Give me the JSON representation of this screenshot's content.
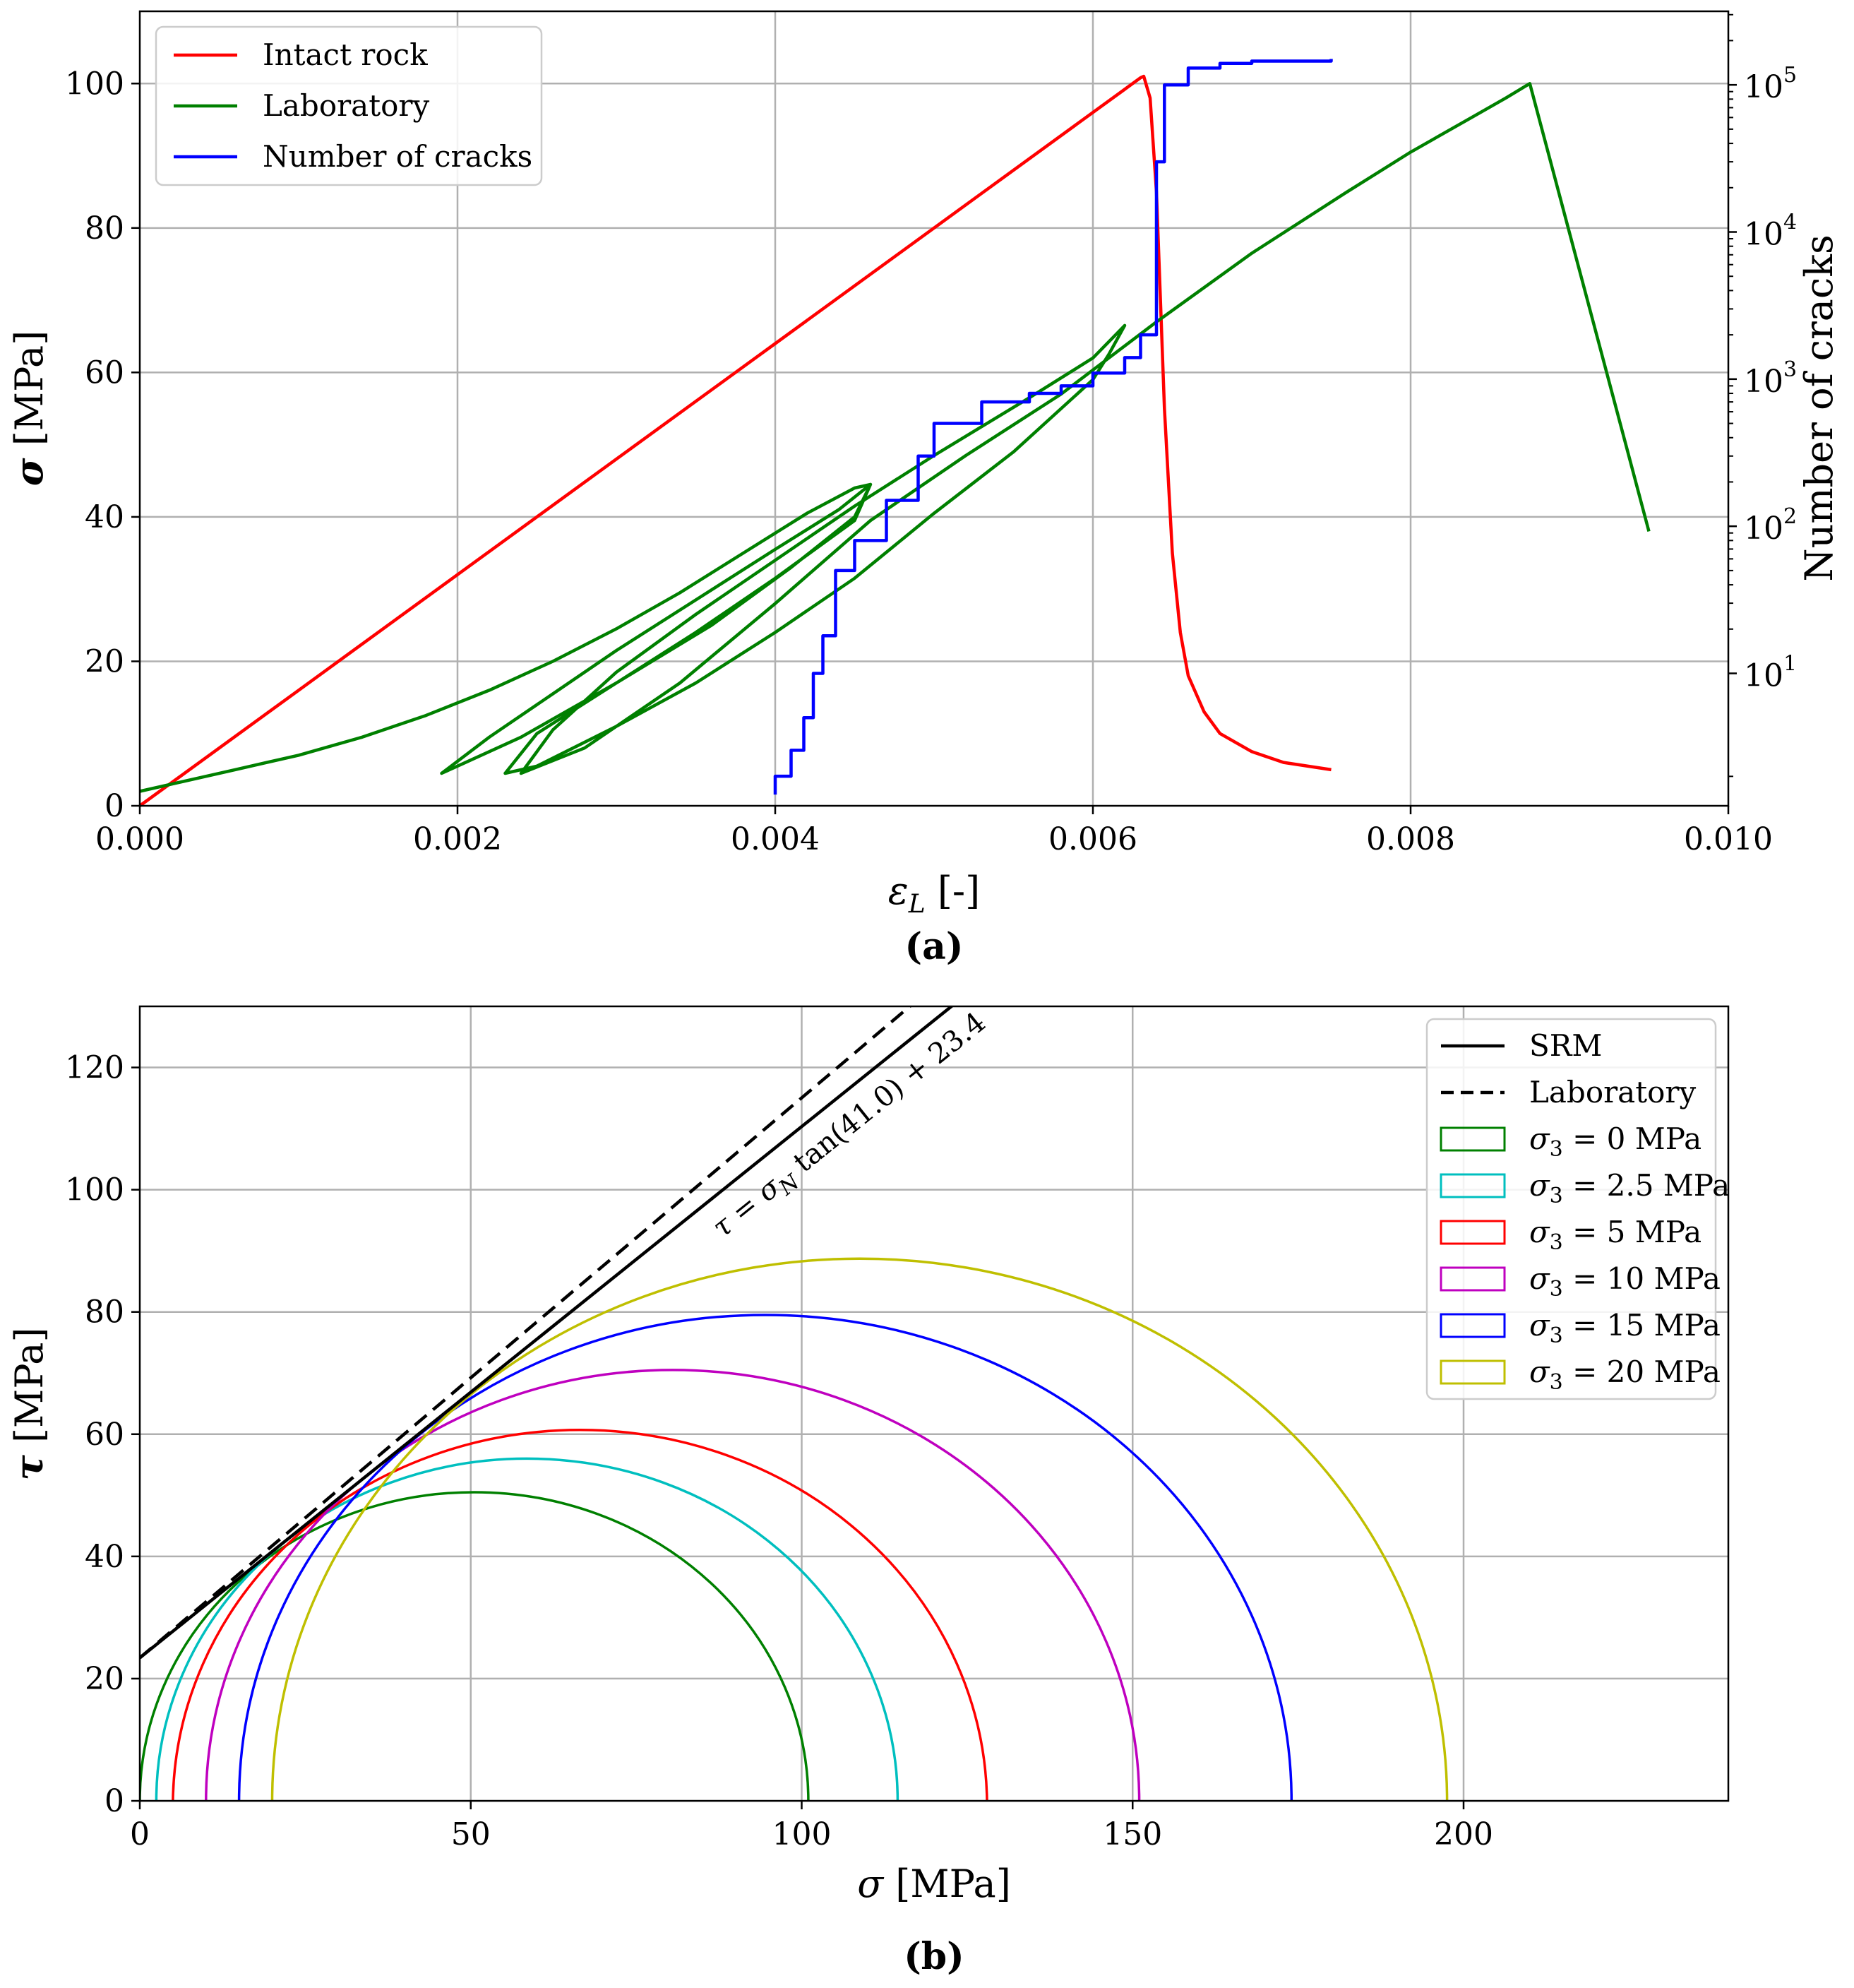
{
  "chart_data": [
    {
      "type": "line",
      "panel_label": "(a)",
      "xlabel_var": "ε",
      "xlabel_sub": "L",
      "xlabel_unit": " [-]",
      "ylabel_var": "σ",
      "ylabel_unit": " [MPa]",
      "y2label": "Number of cracks",
      "xlim": [
        0,
        0.01
      ],
      "ylim": [
        0,
        110
      ],
      "y2lim_log10": [
        0.1,
        5.5
      ],
      "x_ticks": [
        "0.000",
        "0.002",
        "0.004",
        "0.006",
        "0.008",
        "0.010"
      ],
      "x_tick_values": [
        0,
        0.002,
        0.004,
        0.006,
        0.008,
        0.01
      ],
      "y_ticks": [
        "0",
        "20",
        "40",
        "60",
        "80",
        "100"
      ],
      "y_tick_values": [
        0,
        20,
        40,
        60,
        80,
        100
      ],
      "y2_ticks": [
        {
          "base": "10",
          "exp": "1",
          "value": 10
        },
        {
          "base": "10",
          "exp": "2",
          "value": 100
        },
        {
          "base": "10",
          "exp": "3",
          "value": 1000
        },
        {
          "base": "10",
          "exp": "4",
          "value": 10000
        },
        {
          "base": "10",
          "exp": "5",
          "value": 100000
        }
      ],
      "grid": true,
      "legend_position": "upper-left",
      "series": [
        {
          "name": "Intact rock",
          "color": "#ff0000",
          "axis": "left",
          "x": [
            0,
            0.001,
            0.002,
            0.003,
            0.004,
            0.005,
            0.006,
            0.0062,
            0.0063,
            0.00632,
            0.00636,
            0.0064,
            0.00645,
            0.0065,
            0.00655,
            0.0066,
            0.0067,
            0.0068,
            0.007,
            0.0072,
            0.0075
          ],
          "values": [
            0,
            16,
            32,
            48,
            64,
            80,
            96,
            99.2,
            100.8,
            101,
            98,
            85,
            55,
            35,
            24,
            18,
            13,
            10,
            7.5,
            6,
            5
          ]
        },
        {
          "name": "Laboratory",
          "color": "#008000",
          "axis": "left",
          "x": [
            0,
            0.0002,
            0.0006,
            0.001,
            0.0014,
            0.0018,
            0.0022,
            0.0026,
            0.003,
            0.0034,
            0.0038,
            0.0042,
            0.0045,
            0.0046,
            0.0044,
            0.004,
            0.0035,
            0.003,
            0.0026,
            0.0022,
            0.0019,
            0.002,
            0.0024,
            0.003,
            0.0035,
            0.004,
            0.0045,
            0.0046,
            0.0045,
            0.0041,
            0.0036,
            0.003,
            0.0025,
            0.0023,
            0.0025,
            0.003,
            0.0035,
            0.004,
            0.0045,
            0.005,
            0.0055,
            0.006,
            0.0061,
            0.0062,
            0.006,
            0.0056,
            0.005,
            0.0045,
            0.004,
            0.0035,
            0.003,
            0.0026,
            0.0024,
            0.0028,
            0.0034,
            0.004,
            0.0046,
            0.0052,
            0.0058,
            0.0064,
            0.007,
            0.0076,
            0.008,
            0.0084,
            0.0086,
            0.00875,
            0.0095
          ],
          "values": [
            2,
            3,
            5,
            7,
            9.5,
            12.5,
            16,
            20,
            24.5,
            29.5,
            35,
            40.5,
            44,
            44.5,
            41,
            35.5,
            28.5,
            21.5,
            15.5,
            9.5,
            4.5,
            5.5,
            9.5,
            17,
            24,
            31.5,
            39.5,
            44.5,
            40,
            33,
            25,
            17,
            10,
            4.5,
            5.5,
            11,
            17,
            24,
            31.5,
            40.5,
            49,
            59,
            62.5,
            66.5,
            62,
            56.5,
            48.5,
            41.5,
            34,
            26.5,
            18.5,
            10.5,
            4.5,
            8,
            17,
            28,
            39.5,
            48.5,
            57,
            67,
            76.5,
            85,
            90.5,
            95.5,
            98,
            100,
            38
          ]
        },
        {
          "name": "Number of cracks",
          "color": "#0000ff",
          "axis": "right",
          "x": [
            0.004,
            0.004,
            0.0041,
            0.0041,
            0.00418,
            0.00424,
            0.0043,
            0.00438,
            0.0045,
            0.0047,
            0.0049,
            0.005,
            0.0053,
            0.0056,
            0.0058,
            0.006,
            0.0062,
            0.0063,
            0.0063,
            0.0064,
            0.00645,
            0.0066,
            0.0068,
            0.007,
            0.0075
          ],
          "values": [
            1.5,
            2,
            2,
            3,
            5,
            10,
            18,
            50,
            80,
            150,
            300,
            500,
            700,
            800,
            900,
            1100,
            1400,
            1500,
            2000,
            30000,
            100000,
            130000,
            140000,
            145000,
            150000
          ]
        }
      ]
    },
    {
      "type": "scatter",
      "panel_label": "(b)",
      "xlabel_var": "σ",
      "xlabel_unit": " [MPa]",
      "ylabel_var": "τ",
      "ylabel_unit": " [MPa]",
      "xlim": [
        0,
        240
      ],
      "ylim": [
        0,
        130
      ],
      "x_ticks": [
        "0",
        "50",
        "100",
        "150",
        "200"
      ],
      "x_tick_values": [
        0,
        50,
        100,
        150,
        200
      ],
      "y_ticks": [
        "0",
        "20",
        "40",
        "60",
        "80",
        "100",
        "120"
      ],
      "y_tick_values": [
        0,
        20,
        40,
        60,
        80,
        100,
        120
      ],
      "grid": true,
      "legend_position": "upper-right",
      "annotation": {
        "prefix": "τ = σ",
        "sub": "N",
        "suffix": " tan(41.0) + 23.4",
        "anchor_x": 88,
        "anchor_y": 92
      },
      "lines": [
        {
          "name": "SRM",
          "style": "solid",
          "color": "#000000",
          "phi_deg": 41.0,
          "c": 23.4
        },
        {
          "name": "Laboratory",
          "style": "dashed",
          "color": "#000000",
          "phi_deg": 42.5,
          "c": 23.4
        }
      ],
      "circles": [
        {
          "label_var": "σ",
          "label_sub": "3",
          "label_rest": " = 0 MPa",
          "sigma3": 0,
          "sigma1": 101,
          "color": "#008000"
        },
        {
          "label_var": "σ",
          "label_sub": "3",
          "label_rest": " = 2.5 MPa",
          "sigma3": 2.5,
          "sigma1": 114.5,
          "color": "#00bfbf"
        },
        {
          "label_var": "σ",
          "label_sub": "3",
          "label_rest": " = 5 MPa",
          "sigma3": 5,
          "sigma1": 128,
          "color": "#ff0000"
        },
        {
          "label_var": "σ",
          "label_sub": "3",
          "label_rest": " = 10 MPa",
          "sigma3": 10,
          "sigma1": 151,
          "color": "#bf00bf"
        },
        {
          "label_var": "σ",
          "label_sub": "3",
          "label_rest": " = 15 MPa",
          "sigma3": 15,
          "sigma1": 174,
          "color": "#0000ff"
        },
        {
          "label_var": "σ",
          "label_sub": "3",
          "label_rest": " = 20 MPa",
          "sigma3": 20,
          "sigma1": 197.5,
          "color": "#bfbf00"
        }
      ]
    }
  ]
}
